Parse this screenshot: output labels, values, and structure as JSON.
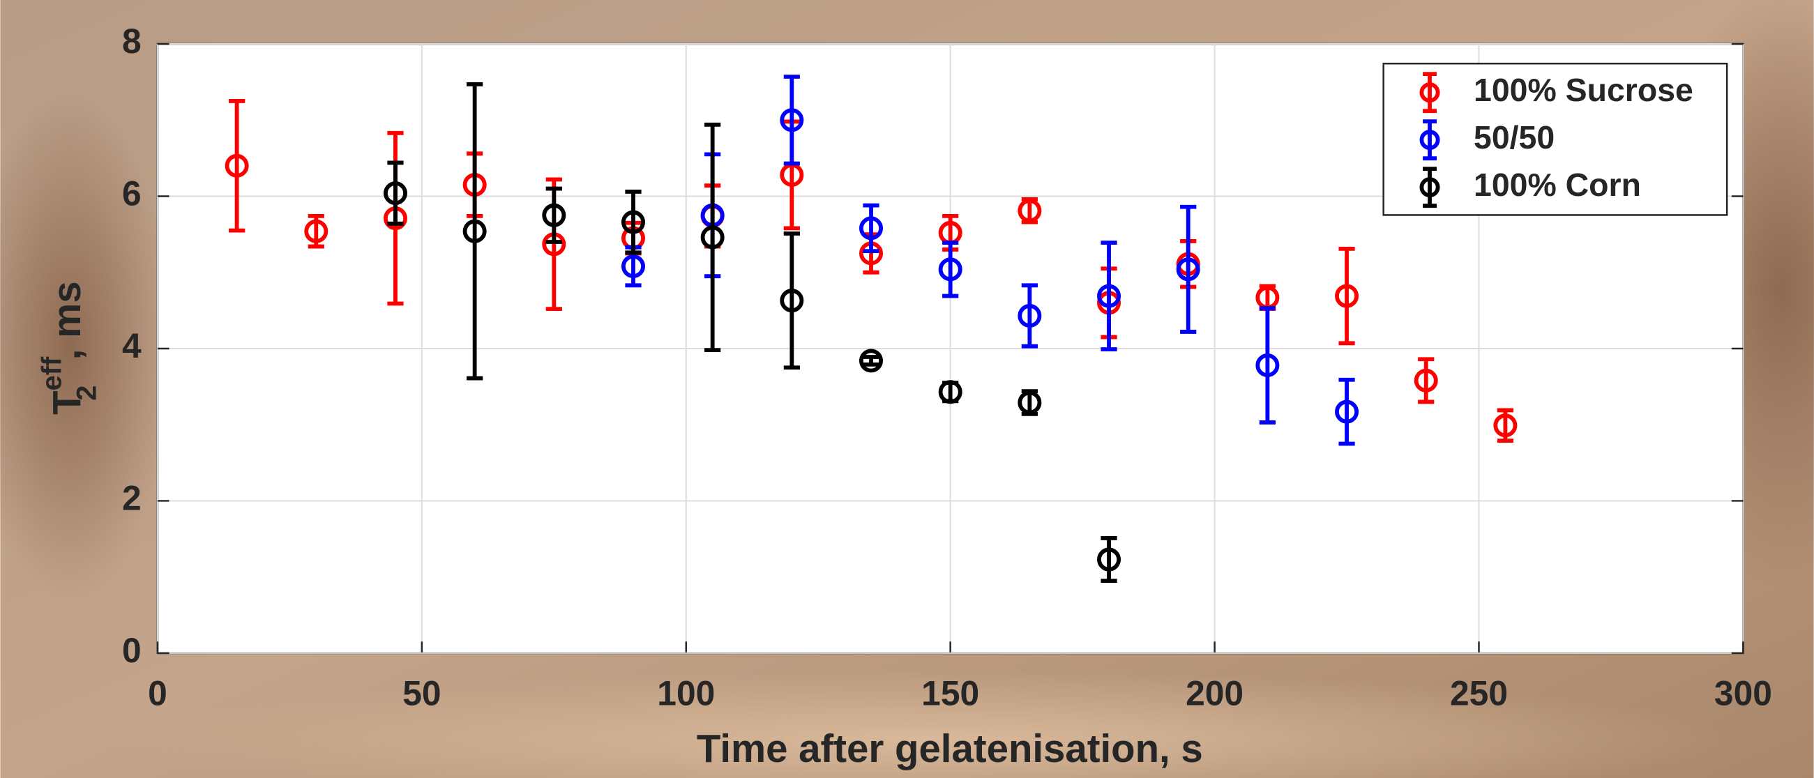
{
  "chart_data": {
    "type": "errorbar",
    "xlabel": "Time after gelatenisation, s",
    "ylabel": {
      "base": "T",
      "sup": "eff",
      "sub": "2",
      "unit": ", ms"
    },
    "xlim": [
      0,
      300
    ],
    "xticks": [
      0,
      50,
      100,
      150,
      200,
      250,
      300
    ],
    "ylim": [
      0,
      8
    ],
    "yticks": [
      0,
      2,
      4,
      6,
      8
    ],
    "grid": true,
    "legend": "upper right",
    "series": [
      {
        "name": "100% Sucrose",
        "color": "#ff0000",
        "x": [
          15,
          30,
          45,
          60,
          75,
          90,
          105,
          120,
          135,
          150,
          165,
          180,
          195,
          210,
          225,
          240,
          255
        ],
        "values": [
          6.4,
          5.54,
          5.71,
          6.15,
          5.37,
          5.45,
          5.74,
          6.28,
          5.25,
          5.52,
          5.81,
          4.6,
          5.11,
          4.67,
          4.69,
          3.58,
          2.99
        ],
        "errors": [
          0.85,
          0.2,
          1.12,
          0.41,
          0.85,
          0.2,
          0.4,
          0.7,
          0.25,
          0.22,
          0.15,
          0.45,
          0.3,
          0.15,
          0.62,
          0.28,
          0.2
        ]
      },
      {
        "name": "50/50",
        "color": "#0000ff",
        "x": [
          90,
          105,
          120,
          135,
          150,
          165,
          180,
          195,
          210,
          225
        ],
        "values": [
          5.08,
          5.75,
          7.0,
          5.58,
          5.04,
          4.43,
          4.69,
          5.04,
          3.78,
          3.17
        ],
        "errors": [
          0.25,
          0.8,
          0.57,
          0.3,
          0.35,
          0.4,
          0.7,
          0.82,
          0.75,
          0.42
        ]
      },
      {
        "name": "100% Corn",
        "color": "#000000",
        "x": [
          45,
          60,
          75,
          90,
          105,
          120,
          135,
          150,
          165,
          180
        ],
        "values": [
          6.04,
          5.54,
          5.75,
          5.66,
          5.46,
          4.63,
          3.84,
          3.43,
          3.29,
          1.23
        ],
        "errors": [
          0.4,
          1.93,
          0.35,
          0.4,
          1.48,
          0.88,
          0.05,
          0.12,
          0.15,
          0.28
        ]
      }
    ]
  }
}
